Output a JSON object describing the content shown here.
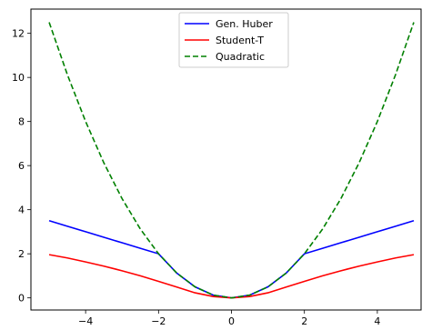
{
  "chart_data": {
    "type": "line",
    "title": "",
    "xlabel": "",
    "ylabel": "",
    "xlim": [
      -5.5,
      5.2
    ],
    "ylim": [
      -0.55,
      13.1
    ],
    "xticks": [
      -4,
      -2,
      0,
      2,
      4
    ],
    "yticks": [
      0,
      2,
      4,
      6,
      8,
      10,
      12
    ],
    "xtick_labels": [
      "−4",
      "−2",
      "0",
      "2",
      "4"
    ],
    "ytick_labels": [
      "0",
      "2",
      "4",
      "6",
      "8",
      "10",
      "12"
    ],
    "grid": false,
    "legend_position": "top-center",
    "x": [
      -5,
      -4.5,
      -4,
      -3.5,
      -3,
      -2.5,
      -2,
      -1.5,
      -1,
      -0.5,
      0,
      0.5,
      1,
      1.5,
      2,
      2.5,
      3,
      3.5,
      4,
      4.5,
      5
    ],
    "series": [
      {
        "name": "Gen. Huber",
        "color": "#0000ff",
        "style": "solid",
        "values": [
          3.5,
          3.25,
          3.0,
          2.75,
          2.5,
          2.25,
          2.0,
          1.125,
          0.5,
          0.125,
          0,
          0.125,
          0.5,
          1.125,
          2.0,
          2.25,
          2.5,
          2.75,
          3.0,
          3.25,
          3.5
        ]
      },
      {
        "name": "Student-T",
        "color": "#ff0000",
        "style": "solid",
        "values": [
          1.96,
          1.81,
          1.63,
          1.44,
          1.23,
          1.0,
          0.75,
          0.49,
          0.23,
          0.06,
          0,
          0.06,
          0.23,
          0.49,
          0.75,
          1.0,
          1.23,
          1.44,
          1.63,
          1.81,
          1.96
        ]
      },
      {
        "name": "Quadratic",
        "color": "#008000",
        "style": "dashed",
        "values": [
          12.5,
          10.125,
          8.0,
          6.125,
          4.5,
          3.125,
          2.0,
          1.125,
          0.5,
          0.125,
          0,
          0.125,
          0.5,
          1.125,
          2.0,
          3.125,
          4.5,
          6.125,
          8.0,
          10.125,
          12.5
        ]
      }
    ]
  }
}
